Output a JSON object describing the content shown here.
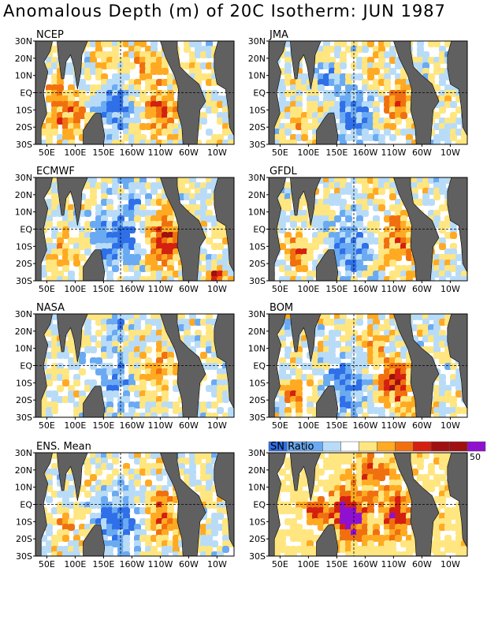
{
  "title": "Anomalous Depth (m) of 20C Isotherm: JUN 1987",
  "colors": {
    "land": "#606060",
    "deep_blue": "#2f6fe8",
    "mid_blue": "#6aaaf2",
    "light_blue": "#b8dcf8",
    "white": "#ffffff",
    "pale_yellow": "#ffe680",
    "orange": "#ffaa22",
    "dark_orange": "#f07010",
    "red": "#d42010",
    "dark_red": "#a01010",
    "purple": "#9010d0"
  },
  "chart_data": [
    {
      "type": "heatmap",
      "name": "NCEP",
      "xlabel": "",
      "ylabel": "",
      "x_ticks": [
        "50E",
        "100E",
        "150E",
        "160W",
        "110W",
        "60W",
        "10W"
      ],
      "y_ticks": [
        "30N",
        "20N",
        "10N",
        "EQ",
        "10S",
        "20S",
        "30S"
      ],
      "features": [
        {
          "lon": 85,
          "lat": -12,
          "level": 3,
          "r": 16
        },
        {
          "lon": 60,
          "lat": 5,
          "level": 2,
          "r": 10
        },
        {
          "lon": 165,
          "lat": -8,
          "level": -3,
          "r": 18
        },
        {
          "lon": 220,
          "lat": 15,
          "level": 2,
          "r": 15
        },
        {
          "lon": 250,
          "lat": -8,
          "level": 3,
          "r": 16
        },
        {
          "lon": 150,
          "lat": 20,
          "level": 2,
          "r": 10
        },
        {
          "lon": 200,
          "lat": -20,
          "level": 1,
          "r": 12
        }
      ]
    },
    {
      "type": "heatmap",
      "name": "JMA",
      "x_ticks": [
        "50E",
        "100E",
        "150E",
        "160W",
        "110W",
        "60W",
        "10W"
      ],
      "y_ticks": [
        "30N",
        "20N",
        "10N",
        "EQ",
        "10S",
        "20S",
        "30S"
      ],
      "features": [
        {
          "lon": 175,
          "lat": -12,
          "level": -3,
          "r": 18
        },
        {
          "lon": 250,
          "lat": -5,
          "level": 3,
          "r": 15
        },
        {
          "lon": 80,
          "lat": -15,
          "level": 2,
          "r": 12
        },
        {
          "lon": 215,
          "lat": 18,
          "level": 1,
          "r": 12
        },
        {
          "lon": 130,
          "lat": 10,
          "level": -2,
          "r": 10
        }
      ]
    },
    {
      "type": "heatmap",
      "name": "ECMWF",
      "x_ticks": [
        "50E",
        "100E",
        "150E",
        "160W",
        "110W",
        "60W",
        "10W"
      ],
      "y_ticks": [
        "30N",
        "20N",
        "10N",
        "EQ",
        "10S",
        "20S",
        "30S"
      ],
      "features": [
        {
          "lon": 255,
          "lat": -5,
          "level": 4,
          "r": 18
        },
        {
          "lon": 170,
          "lat": -5,
          "level": -3,
          "r": 20
        },
        {
          "lon": 80,
          "lat": -12,
          "level": 2,
          "r": 14
        },
        {
          "lon": 200,
          "lat": 20,
          "level": -2,
          "r": 12
        },
        {
          "lon": 345,
          "lat": -25,
          "level": 5,
          "r": 6
        }
      ]
    },
    {
      "type": "heatmap",
      "name": "GFDL",
      "x_ticks": [
        "50E",
        "100E",
        "150E",
        "160W",
        "110W",
        "60W",
        "10W"
      ],
      "y_ticks": [
        "30N",
        "20N",
        "10N",
        "EQ",
        "10S",
        "20S",
        "30S"
      ],
      "features": [
        {
          "lon": 255,
          "lat": -5,
          "level": 3,
          "r": 18
        },
        {
          "lon": 170,
          "lat": -10,
          "level": -3,
          "r": 20
        },
        {
          "lon": 80,
          "lat": -12,
          "level": 3,
          "r": 12
        },
        {
          "lon": 210,
          "lat": 18,
          "level": 1,
          "r": 12
        },
        {
          "lon": 300,
          "lat": -10,
          "level": 2,
          "r": 8
        }
      ]
    },
    {
      "type": "heatmap",
      "name": "NASA",
      "x_ticks": [
        "50E",
        "100E",
        "150E",
        "160W",
        "110W",
        "60W",
        "10W"
      ],
      "y_ticks": [
        "30N",
        "20N",
        "10N",
        "EQ",
        "10S",
        "20S",
        "30S"
      ],
      "features": [
        {
          "lon": 245,
          "lat": 0,
          "level": 2,
          "r": 18
        },
        {
          "lon": 160,
          "lat": -8,
          "level": -2,
          "r": 20
        },
        {
          "lon": 80,
          "lat": -8,
          "level": 1,
          "r": 12
        },
        {
          "lon": 170,
          "lat": 22,
          "level": -3,
          "r": 8
        }
      ]
    },
    {
      "type": "heatmap",
      "name": "BOM",
      "x_ticks": [
        "50E",
        "100E",
        "150E",
        "160W",
        "110W",
        "60W",
        "10W"
      ],
      "y_ticks": [
        "30N",
        "20N",
        "10N",
        "EQ",
        "10S",
        "20S",
        "30S"
      ],
      "features": [
        {
          "lon": 250,
          "lat": -8,
          "level": 4,
          "r": 16
        },
        {
          "lon": 165,
          "lat": -10,
          "level": -3,
          "r": 18
        },
        {
          "lon": 70,
          "lat": -15,
          "level": 3,
          "r": 10
        },
        {
          "lon": 210,
          "lat": 15,
          "level": 2,
          "r": 14
        },
        {
          "lon": 300,
          "lat": -20,
          "level": 1,
          "r": 10
        }
      ]
    },
    {
      "type": "heatmap",
      "name": "ENS. Mean",
      "x_ticks": [
        "50E",
        "100E",
        "150E",
        "160W",
        "110W",
        "60W",
        "10W"
      ],
      "y_ticks": [
        "30N",
        "20N",
        "10N",
        "EQ",
        "10S",
        "20S",
        "30S"
      ],
      "features": [
        {
          "lon": 250,
          "lat": -5,
          "level": 3,
          "r": 18
        },
        {
          "lon": 170,
          "lat": -8,
          "level": -3,
          "r": 20
        },
        {
          "lon": 80,
          "lat": -12,
          "level": 2,
          "r": 12
        },
        {
          "lon": 210,
          "lat": 18,
          "level": 1,
          "r": 12
        }
      ]
    },
    {
      "type": "heatmap",
      "name": "SN Ratio",
      "x_ticks": [
        "50E",
        "100E",
        "150E",
        "160W",
        "110W",
        "60W",
        "10W"
      ],
      "y_ticks": [
        "30N",
        "20N",
        "10N",
        "EQ",
        "10S",
        "20S",
        "30S"
      ],
      "colorbar_label": "50",
      "features": [
        {
          "lon": 170,
          "lat": -5,
          "level": 5,
          "r": 20
        },
        {
          "lon": 250,
          "lat": -5,
          "level": 4,
          "r": 16
        },
        {
          "lon": 110,
          "lat": -3,
          "level": 4,
          "r": 10
        },
        {
          "lon": 210,
          "lat": 20,
          "level": 3,
          "r": 14
        }
      ]
    }
  ]
}
